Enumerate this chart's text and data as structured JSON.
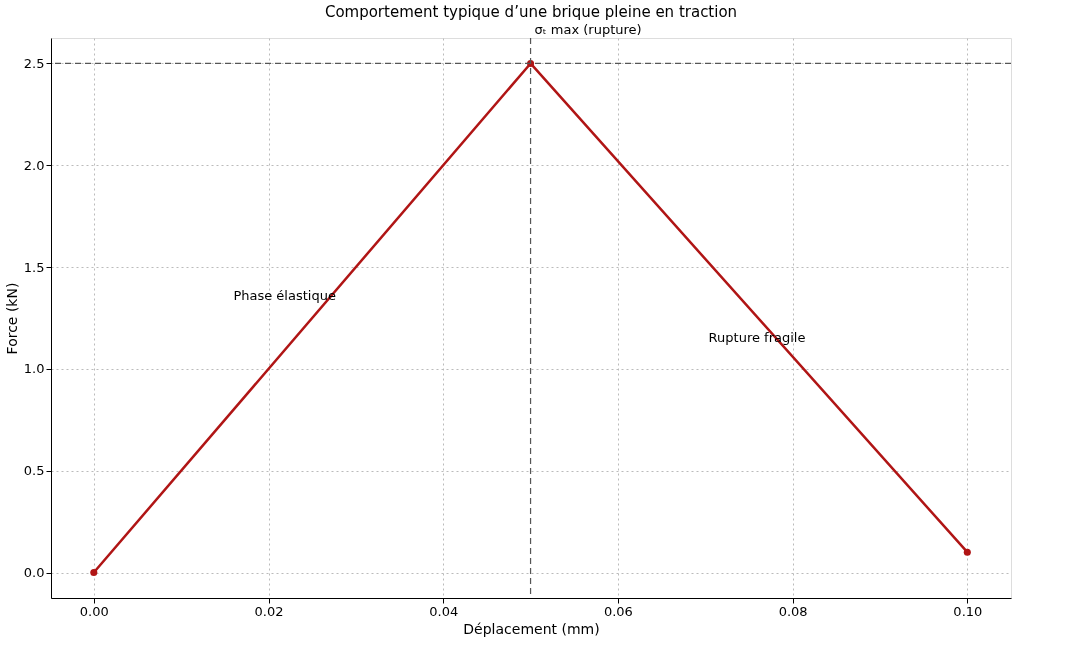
{
  "chart_data": {
    "type": "line",
    "title": "Comportement typique d’une brique pleine en traction",
    "xlabel": "Déplacement (mm)",
    "ylabel": "Force (kN)",
    "x": [
      0.0,
      0.05,
      0.1
    ],
    "series": [
      {
        "color": "#b01515",
        "values": [
          0.0,
          2.5,
          0.1
        ]
      }
    ],
    "xlim": [
      -0.0049,
      0.105
    ],
    "ylim": [
      -0.125,
      2.625
    ],
    "xticks": [
      {
        "value": 0,
        "label": "0.00"
      },
      0.02,
      0.04,
      0.06,
      0.08,
      {
        "value": 0.1,
        "label": "0.10"
      }
    ],
    "yticks": [
      {
        "value": 0,
        "label": "0.0"
      },
      0.5,
      {
        "value": 1,
        "label": "1.0"
      },
      1.5,
      {
        "value": 2,
        "label": "2.0"
      },
      2.5
    ],
    "grid": true,
    "marker": "circle",
    "line_style": "solid",
    "ref_lines": [
      {
        "axis": "y",
        "value": 2.5,
        "color": "#555555",
        "line_style": "dashed"
      },
      {
        "axis": "x",
        "value": 0.05,
        "color": "#555555",
        "line_style": "dashed"
      }
    ],
    "annotations": [
      "Phase élastique",
      "Rupture fragile",
      {
        "text": "σₜ max (rupture)",
        "x": 0.05,
        "y": 2.5
      }
    ]
  }
}
